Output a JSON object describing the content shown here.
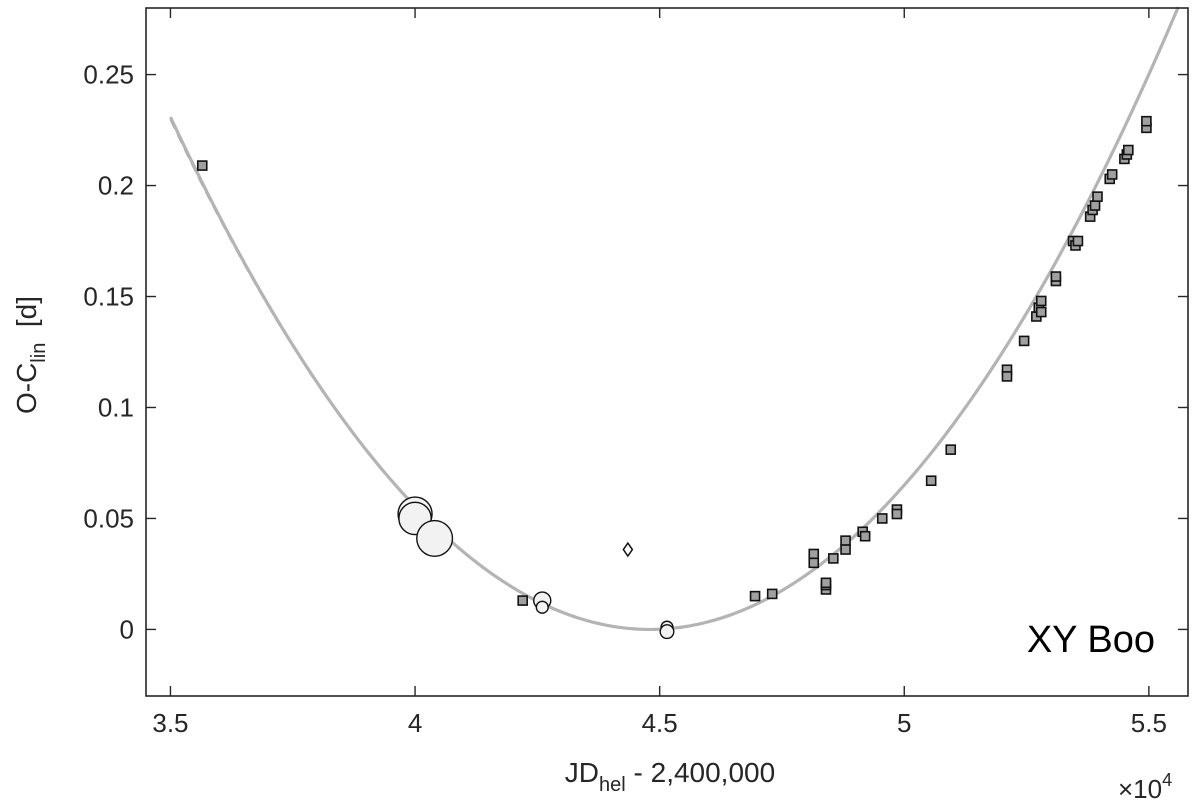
{
  "chart_data": {
    "type": "scatter",
    "title": "",
    "annotation": "XY Boo",
    "xlabel": {
      "main": "JD",
      "sub": "hel",
      "rest": " - 2,400,000"
    },
    "ylabel": {
      "main": "O-C",
      "sub": "lin",
      "rest": "  [d]"
    },
    "x_exponent_label": {
      "base": "×10",
      "exp": "4"
    },
    "xlim": [
      3.45,
      5.58
    ],
    "ylim": [
      -0.03,
      0.28
    ],
    "x_ticks": [
      {
        "value": 3.5,
        "label": "3.5"
      },
      {
        "value": 4.0,
        "label": "4"
      },
      {
        "value": 4.5,
        "label": "4.5"
      },
      {
        "value": 5.0,
        "label": "5"
      },
      {
        "value": 5.5,
        "label": "5.5"
      }
    ],
    "y_ticks": [
      {
        "value": 0,
        "label": "0"
      },
      {
        "value": 0.05,
        "label": "0.05"
      },
      {
        "value": 0.1,
        "label": "0.1"
      },
      {
        "value": 0.15,
        "label": "0.15"
      },
      {
        "value": 0.2,
        "label": "0.2"
      },
      {
        "value": 0.25,
        "label": "0.25"
      }
    ],
    "grid": false,
    "fit_curve": {
      "form": "quadratic",
      "vertex_x": 4.48,
      "vertex_y": 0.0,
      "coefficient": 0.2404,
      "x_range": [
        3.5,
        5.56
      ],
      "color": "#b4b4b4",
      "dashed_color": "#444444"
    },
    "series": [
      {
        "marker": "square",
        "color": "#a0a0a0",
        "points": [
          [
            3.565,
            0.209
          ],
          [
            4.22,
            0.013
          ],
          [
            4.695,
            0.015
          ],
          [
            4.73,
            0.016
          ],
          [
            4.815,
            0.034
          ],
          [
            4.815,
            0.03
          ],
          [
            4.84,
            0.018
          ],
          [
            4.84,
            0.02
          ],
          [
            4.84,
            0.021
          ],
          [
            4.855,
            0.032
          ],
          [
            4.88,
            0.04
          ],
          [
            4.88,
            0.036
          ],
          [
            4.915,
            0.044
          ],
          [
            4.92,
            0.042
          ],
          [
            4.955,
            0.05
          ],
          [
            4.985,
            0.054
          ],
          [
            4.985,
            0.052
          ],
          [
            5.055,
            0.067
          ],
          [
            5.095,
            0.081
          ],
          [
            5.21,
            0.117
          ],
          [
            5.21,
            0.114
          ],
          [
            5.245,
            0.13
          ],
          [
            5.27,
            0.141
          ],
          [
            5.275,
            0.145
          ],
          [
            5.28,
            0.148
          ],
          [
            5.28,
            0.143
          ],
          [
            5.31,
            0.157
          ],
          [
            5.31,
            0.159
          ],
          [
            5.345,
            0.175
          ],
          [
            5.35,
            0.173
          ],
          [
            5.355,
            0.175
          ],
          [
            5.38,
            0.186
          ],
          [
            5.385,
            0.189
          ],
          [
            5.39,
            0.191
          ],
          [
            5.395,
            0.195
          ],
          [
            5.42,
            0.203
          ],
          [
            5.425,
            0.205
          ],
          [
            5.45,
            0.212
          ],
          [
            5.455,
            0.214
          ],
          [
            5.458,
            0.216
          ],
          [
            5.495,
            0.226
          ],
          [
            5.495,
            0.229
          ]
        ]
      },
      {
        "marker": "circle",
        "color": "#f2f2f2",
        "points": [
          [
            4.0,
            0.052,
            1.0
          ],
          [
            4.0,
            0.05,
            0.95
          ],
          [
            4.04,
            0.041,
            1.05
          ],
          [
            4.26,
            0.013,
            0.5
          ],
          [
            4.26,
            0.01,
            0.35
          ],
          [
            4.515,
            0.001,
            0.35
          ],
          [
            4.515,
            -0.001,
            0.4
          ]
        ]
      },
      {
        "marker": "diamond",
        "color": "#ffffff",
        "points": [
          [
            4.435,
            0.036
          ]
        ]
      }
    ]
  }
}
